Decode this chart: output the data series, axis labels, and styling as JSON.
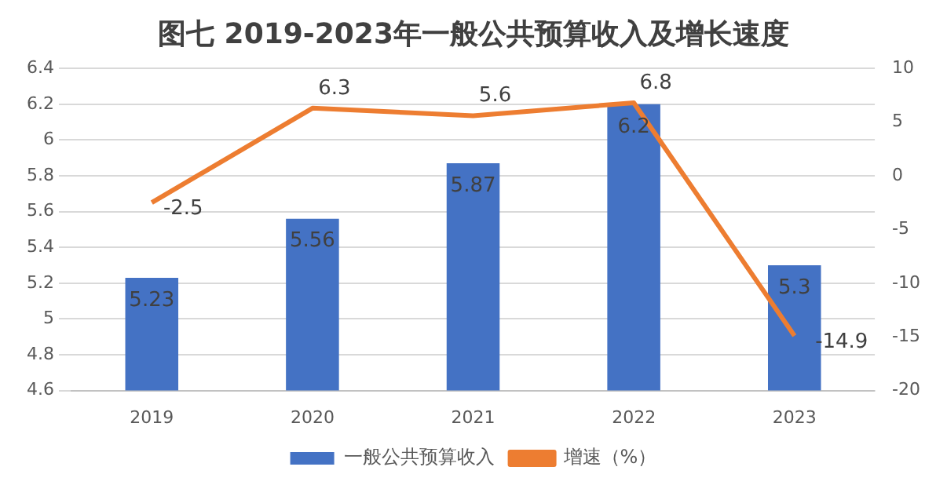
{
  "chart_data": {
    "type": "bar",
    "title": "图七 2019-2023年一般公共预算收入及增长速度",
    "categories": [
      "2019",
      "2020",
      "2021",
      "2022",
      "2023"
    ],
    "series": [
      {
        "name": "一般公共预算收入",
        "color": "#4472c4",
        "values": [
          5.23,
          5.56,
          5.87,
          6.2,
          5.3
        ]
      },
      {
        "name": "增速（%）",
        "type": "line",
        "axis": "y2",
        "color": "#ed7d31",
        "values": [
          -2.5,
          6.3,
          5.6,
          6.8,
          -14.9
        ]
      }
    ],
    "ylim": [
      4.6,
      6.4
    ],
    "yticks": [
      4.6,
      4.8,
      5,
      5.2,
      5.4,
      5.6,
      5.8,
      6,
      6.2,
      6.4
    ],
    "y2lim": [
      -20,
      10
    ],
    "y2ticks": [
      -20,
      -15,
      -10,
      -5,
      0,
      5,
      10
    ],
    "data_labels": true,
    "grid": "y",
    "legend": "bottom",
    "marker": "none"
  }
}
